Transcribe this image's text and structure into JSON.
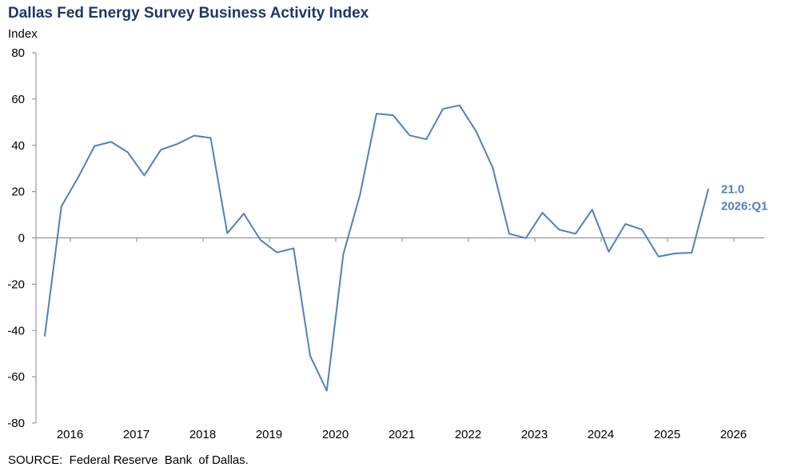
{
  "chart_data": {
    "type": "line",
    "title": "Dallas Fed Energy Survey Business Activity Index",
    "ylabel": "Index",
    "xlabel": "",
    "ylim": [
      -80,
      80
    ],
    "yticks": [
      80,
      60,
      40,
      20,
      0,
      -20,
      -40,
      -60,
      -80
    ],
    "ytick_labels": [
      "80",
      "60",
      "40",
      "20",
      "0",
      "-20",
      "-40",
      "-60",
      "-80"
    ],
    "year_labels": [
      "2016",
      "2017",
      "2018",
      "2019",
      "2020",
      "2021",
      "2022",
      "2023",
      "2024",
      "2025",
      "2026"
    ],
    "grid": false,
    "line_color": "#4f81bd",
    "annotation_color": "#4f81bd",
    "series": [
      {
        "name": "Business Activity Index",
        "x": [
          "2016:Q1",
          "2016:Q2",
          "2016:Q3",
          "2016:Q4",
          "2017:Q1",
          "2017:Q2",
          "2017:Q3",
          "2017:Q4",
          "2018:Q1",
          "2018:Q2",
          "2018:Q3",
          "2018:Q4",
          "2019:Q1",
          "2019:Q2",
          "2019:Q3",
          "2019:Q4",
          "2020:Q1",
          "2020:Q2",
          "2020:Q3",
          "2020:Q4",
          "2021:Q1",
          "2021:Q2",
          "2021:Q3",
          "2021:Q4",
          "2022:Q1",
          "2022:Q2",
          "2022:Q3",
          "2022:Q4",
          "2023:Q1",
          "2023:Q2",
          "2023:Q3",
          "2023:Q4",
          "2024:Q1",
          "2024:Q2",
          "2024:Q3",
          "2024:Q4",
          "2025:Q1",
          "2025:Q2",
          "2025:Q3",
          "2025:Q4",
          "2026:Q1"
        ],
        "values": [
          -42.3,
          13.6,
          26.0,
          39.7,
          41.5,
          37.0,
          27.0,
          38.1,
          40.6,
          44.2,
          43.2,
          2.0,
          10.5,
          -0.9,
          -6.3,
          -4.5,
          -51.0,
          -66.0,
          -7.0,
          18.6,
          53.7,
          53.0,
          44.3,
          42.6,
          55.7,
          57.3,
          46.1,
          30.4,
          1.8,
          -0.1,
          10.9,
          3.6,
          1.8,
          12.2,
          -6.0,
          6.0,
          3.6,
          -8.1,
          -6.7,
          -6.4,
          21.0
        ]
      }
    ],
    "annotation": {
      "value_label": "21.0",
      "period_label": "2026:Q1"
    }
  },
  "source_text": "SOURCE:  Federal Reserve  Bank  of Dallas."
}
